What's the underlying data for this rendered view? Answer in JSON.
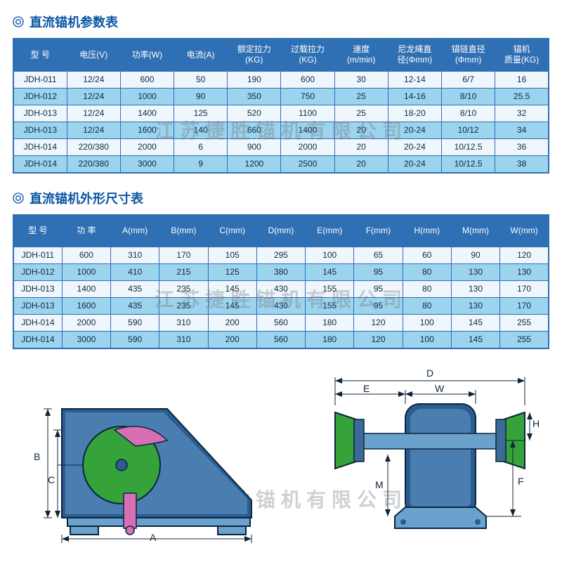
{
  "palette": {
    "header_bg": "#2f6fb3",
    "header_text": "#ffffff",
    "row_light": "#eff7fc",
    "row_dark": "#9cd3ee",
    "border": "#2f6fb3",
    "title": "#0a56a3",
    "text": "#0e2a44"
  },
  "watermark": "江苏捷胜锚机有限公司",
  "table1": {
    "title": "直流锚机参数表",
    "columns": [
      "型 号",
      "电压(V)",
      "功率(W)",
      "电流(A)",
      "额定拉力\n(KG)",
      "过载拉力\n(KG)",
      "速度\n(m/min)",
      "尼龙绳直\n径(Φmm)",
      "锚链直径\n(Φmm)",
      "锚机\n质量(KG)"
    ],
    "rows": [
      [
        "JDH-011",
        "12/24",
        "600",
        "50",
        "190",
        "600",
        "30",
        "12-14",
        "6/7",
        "16"
      ],
      [
        "JDH-012",
        "12/24",
        "1000",
        "90",
        "350",
        "750",
        "25",
        "14-16",
        "8/10",
        "25.5"
      ],
      [
        "JDH-013",
        "12/24",
        "1400",
        "125",
        "520",
        "1100",
        "25",
        "18-20",
        "8/10",
        "32"
      ],
      [
        "JDH-013",
        "12/24",
        "1600",
        "140",
        "660",
        "1400",
        "20",
        "20-24",
        "10/12",
        "34"
      ],
      [
        "JDH-014",
        "220/380",
        "2000",
        "6",
        "900",
        "2000",
        "20",
        "20-24",
        "10/12.5",
        "36"
      ],
      [
        "JDH-014",
        "220/380",
        "3000",
        "9",
        "1200",
        "2500",
        "20",
        "20-24",
        "10/12.5",
        "38"
      ]
    ]
  },
  "table2": {
    "title": "直流锚机外形尺寸表",
    "columns": [
      "型 号",
      "功 率",
      "A(mm)",
      "B(mm)",
      "C(mm)",
      "D(mm)",
      "E(mm)",
      "F(mm)",
      "H(mm)",
      "M(mm)",
      "W(mm)"
    ],
    "rows": [
      [
        "JDH-011",
        "600",
        "310",
        "170",
        "105",
        "295",
        "100",
        "65",
        "60",
        "90",
        "120"
      ],
      [
        "JDH-012",
        "1000",
        "410",
        "215",
        "125",
        "380",
        "145",
        "95",
        "80",
        "130",
        "130"
      ],
      [
        "JDH-013",
        "1400",
        "435",
        "235",
        "145",
        "430",
        "155",
        "95",
        "80",
        "130",
        "170"
      ],
      [
        "JDH-013",
        "1600",
        "435",
        "235",
        "145",
        "430",
        "155",
        "95",
        "80",
        "130",
        "170"
      ],
      [
        "JDH-014",
        "2000",
        "590",
        "310",
        "200",
        "560",
        "180",
        "120",
        "100",
        "145",
        "255"
      ],
      [
        "JDH-014",
        "3000",
        "590",
        "310",
        "200",
        "560",
        "180",
        "120",
        "100",
        "145",
        "255"
      ]
    ]
  },
  "diagram": {
    "side_view": {
      "labels": [
        "A",
        "B",
        "C"
      ],
      "colors": {
        "housing": "#2a5c8f",
        "drum": "#36a23a",
        "bracket": "#b94f9d"
      }
    },
    "front_view": {
      "labels": [
        "D",
        "E",
        "W",
        "M",
        "F",
        "H"
      ],
      "colors": {
        "body": "#2a5c8f",
        "gypsy": "#36a23a"
      }
    }
  }
}
